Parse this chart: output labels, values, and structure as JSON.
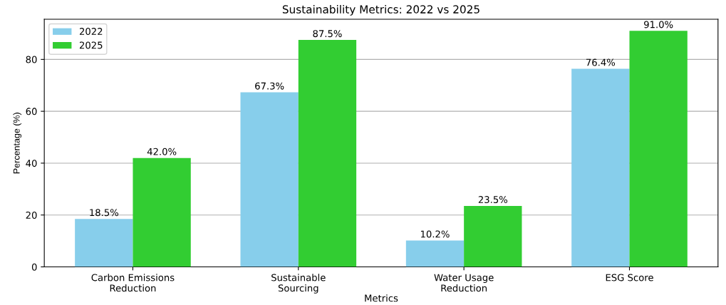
{
  "chart_data": {
    "type": "bar",
    "title": "Sustainability Metrics: 2022 vs 2025",
    "xlabel": "Metrics",
    "ylabel": "Percentage (%)",
    "categories": [
      "Carbon Emissions\nReduction",
      "Sustainable\nSourcing",
      "Water Usage\nReduction",
      "ESG Score"
    ],
    "series": [
      {
        "name": "2022",
        "color": "#87ceeb",
        "values": [
          18.5,
          67.3,
          10.2,
          76.4
        ],
        "value_labels": [
          "18.5%",
          "67.3%",
          "10.2%",
          "76.4%"
        ]
      },
      {
        "name": "2025",
        "color": "#32cd32",
        "values": [
          42.0,
          87.5,
          23.5,
          91.0
        ],
        "value_labels": [
          "42.0%",
          "87.5%",
          "23.5%",
          "91.0%"
        ]
      }
    ],
    "ylim": [
      0,
      95.5
    ],
    "yticks": [
      0,
      20,
      40,
      60,
      80
    ],
    "grid": "y",
    "legend": "top left"
  }
}
